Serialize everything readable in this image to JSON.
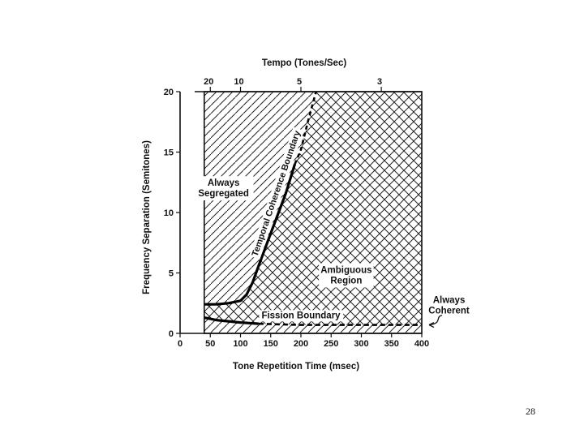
{
  "page": {
    "number": "28"
  },
  "chart_data": {
    "type": "area",
    "top_axis": {
      "label": "Tempo (Tones/Sec)",
      "ticks": [
        {
          "label": "20",
          "at_ms": 50
        },
        {
          "label": "10",
          "at_ms": 100
        },
        {
          "label": "5",
          "at_ms": 200
        },
        {
          "label": "3",
          "at_ms": 333
        }
      ]
    },
    "xlabel": "Tone Repetition Time (msec)",
    "ylabel": "Frequency Separation (Semitones)",
    "xlim": [
      0,
      400
    ],
    "ylim": [
      0,
      20
    ],
    "xticks": [
      0,
      50,
      100,
      150,
      200,
      250,
      300,
      350,
      400
    ],
    "yticks": [
      0,
      5,
      10,
      15,
      20
    ],
    "plotted_x_range": [
      40,
      400
    ],
    "grid": false,
    "series": [
      {
        "name": "Temporal Coherence Boundary",
        "x": [
          40,
          60,
          80,
          100,
          110,
          120,
          130,
          145,
          160,
          175,
          190,
          200,
          212,
          225
        ],
        "y": [
          2.4,
          2.4,
          2.5,
          2.7,
          3.2,
          4.2,
          5.6,
          7.6,
          9.6,
          11.6,
          14.0,
          15.2,
          17.6,
          20.0
        ]
      },
      {
        "name": "Fission Boundary",
        "x": [
          40,
          60,
          80,
          100,
          130,
          160,
          200,
          250,
          300,
          350,
          400
        ],
        "y": [
          1.3,
          1.1,
          1.0,
          0.9,
          0.8,
          0.75,
          0.7,
          0.7,
          0.7,
          0.7,
          0.7
        ]
      }
    ],
    "regions": [
      {
        "label_lines": [
          "Always",
          "Segregated"
        ],
        "at": [
          72,
          12.0
        ],
        "fill": "diagonal hatch"
      },
      {
        "label_lines": [
          "Ambiguous",
          "Region"
        ],
        "at": [
          275,
          4.8
        ],
        "fill": "cross hatch"
      },
      {
        "label_lines": [
          "Always",
          "Coherent"
        ],
        "at": [
          445,
          2.3
        ],
        "fill": "diagonal hatch",
        "outside_plot": true
      }
    ]
  }
}
